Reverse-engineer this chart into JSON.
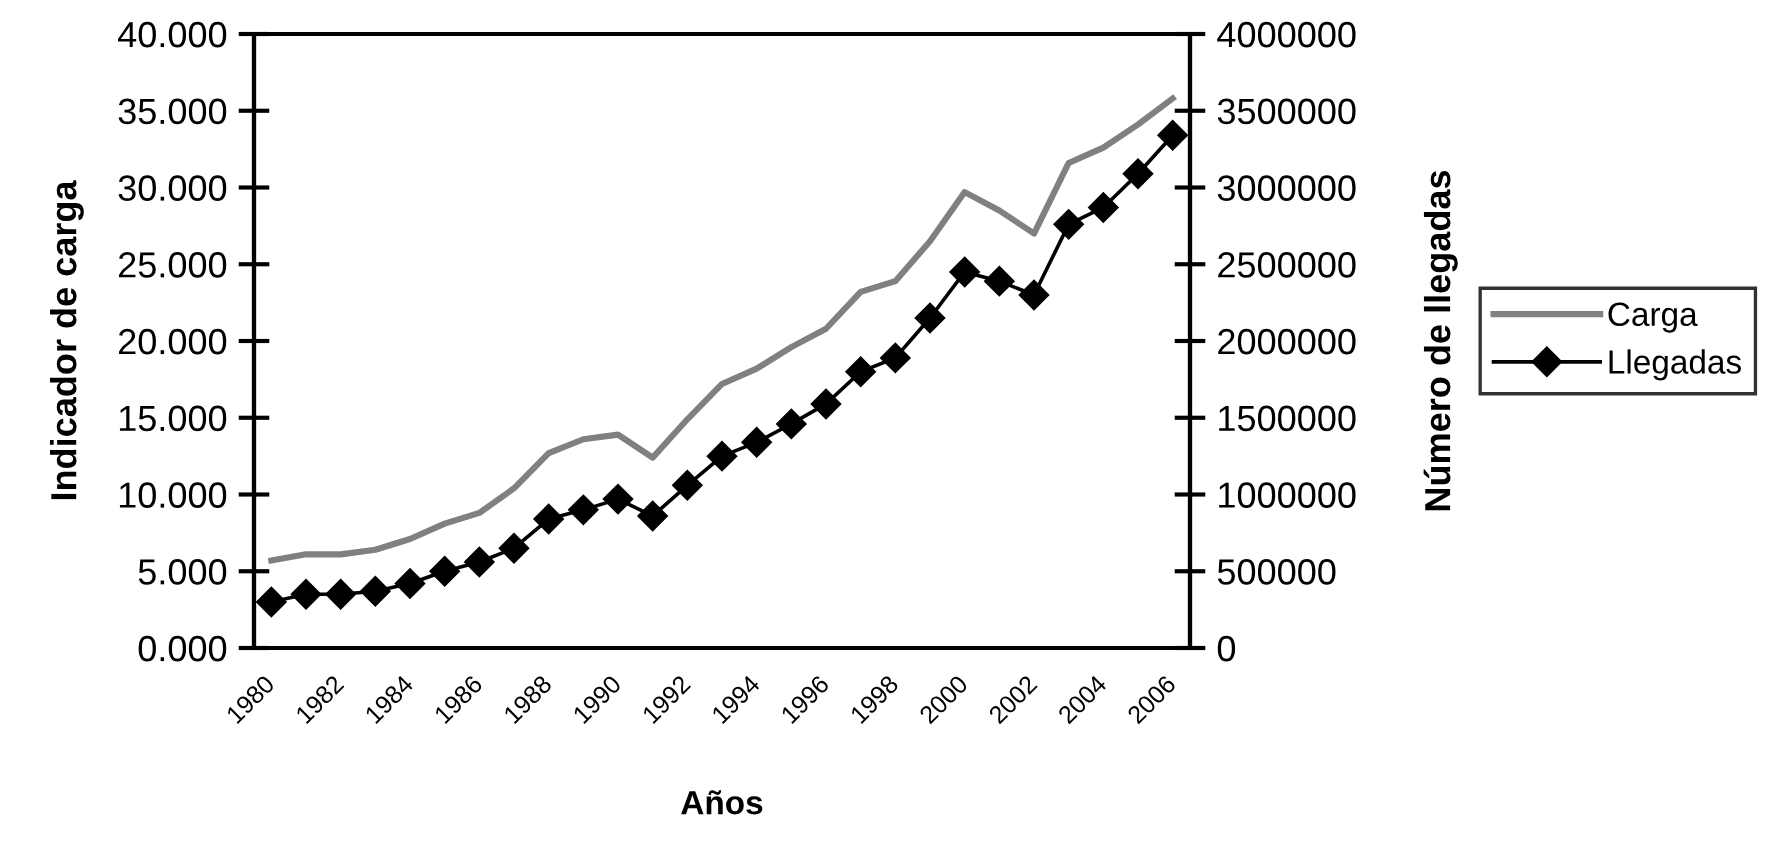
{
  "chart_data": {
    "type": "line",
    "xlabel": "Años",
    "ylabel": "Indicador de carga",
    "y2label": "Número de llegadas",
    "categories": [
      "1980",
      null,
      "1982",
      null,
      "1984",
      null,
      "1986",
      null,
      "1988",
      null,
      "1990",
      null,
      "1992",
      null,
      "1994",
      null,
      "1996",
      null,
      "1998",
      null,
      "2000",
      null,
      "2002",
      null,
      "2004",
      null,
      "2006"
    ],
    "series": [
      {
        "name": "Carga",
        "color": "#808080",
        "marker": "none",
        "axis": "y",
        "values": [
          5.7,
          6.1,
          6.1,
          6.4,
          7.1,
          8.1,
          8.8,
          10.4,
          12.7,
          13.6,
          13.9,
          12.4,
          14.9,
          17.2,
          18.2,
          19.6,
          20.8,
          23.2,
          23.9,
          26.5,
          29.7,
          28.5,
          27.0,
          31.6,
          32.6,
          34.1,
          35.8
        ]
      },
      {
        "name": "Llegadas",
        "color": "#000000",
        "marker": "diamond",
        "axis": "y2",
        "values": [
          300000,
          350000,
          350000,
          370000,
          420000,
          500000,
          560000,
          650000,
          840000,
          900000,
          970000,
          860000,
          1060000,
          1250000,
          1340000,
          1460000,
          1590000,
          1800000,
          1890000,
          2150000,
          2450000,
          2390000,
          2300000,
          2760000,
          2870000,
          3090000,
          3340000
        ]
      }
    ],
    "ylim": [
      0,
      40
    ],
    "yticks": [
      {
        "value": 0,
        "label": "0.000"
      },
      {
        "value": 5,
        "label": "5.000"
      },
      {
        "value": 10,
        "label": "10.000"
      },
      {
        "value": 15,
        "label": "15.000"
      },
      {
        "value": 20,
        "label": "20.000"
      },
      {
        "value": 25,
        "label": "25.000"
      },
      {
        "value": 30,
        "label": "30.000"
      },
      {
        "value": 35,
        "label": "35.000"
      },
      {
        "value": 40,
        "label": "40.000"
      }
    ],
    "y2lim": [
      0,
      4000000
    ],
    "y2ticks": [
      0,
      500000,
      1000000,
      1500000,
      2000000,
      2500000,
      3000000,
      3500000,
      4000000
    ],
    "line_style": "solid",
    "legend": "right"
  }
}
